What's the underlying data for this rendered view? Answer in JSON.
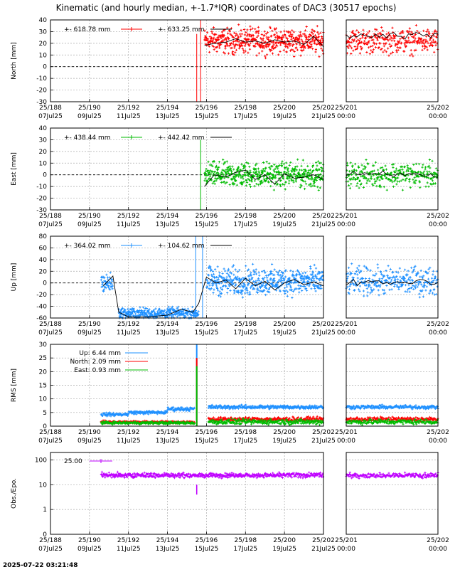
{
  "title": "Kinematic (and hourly median, +-1.7*IQR) coordinates of DAC3 (30517 epochs)",
  "timestamp": "2025-07-22 03:21:48",
  "colors": {
    "north": "#ff0000",
    "east": "#00bb00",
    "up": "#1e90ff",
    "obs": "#bf00ff",
    "median": "#000000"
  },
  "x_axis_main": {
    "range": [
      188,
      202
    ],
    "ticks": [
      {
        "v": 188,
        "doy": "25/188",
        "date": "07Jul25"
      },
      {
        "v": 190,
        "doy": "25/190",
        "date": "09Jul25"
      },
      {
        "v": 192,
        "doy": "25/192",
        "date": "11Jul25"
      },
      {
        "v": 194,
        "doy": "25/194",
        "date": "13Jul25"
      },
      {
        "v": 196,
        "doy": "25/196",
        "date": "15Jul25"
      },
      {
        "v": 198,
        "doy": "25/198",
        "date": "17Jul25"
      },
      {
        "v": 200,
        "doy": "25/200",
        "date": "19Jul25"
      },
      {
        "v": 202,
        "doy": "25/202",
        "date": "21Jul25"
      }
    ]
  },
  "x_axis_zoom": {
    "range": [
      201,
      202
    ],
    "ticks": [
      {
        "v": 201,
        "doy": "25/201",
        "date": "00:00"
      },
      {
        "v": 202,
        "doy": "25/202",
        "date": "00:00"
      }
    ]
  },
  "chart_data": [
    {
      "type": "scatter",
      "key": "north",
      "ylabel": "North [mm]",
      "ylim": [
        -30,
        40
      ],
      "yticks": [
        -30,
        -20,
        -10,
        0,
        10,
        20,
        30,
        40
      ],
      "grid": true,
      "legend": [
        {
          "label": "+-  618.78 mm",
          "style": "points"
        },
        {
          "label": "+- 633.25 mm",
          "style": "line"
        }
      ],
      "series": [
        {
          "name": "kinematic",
          "kind": "points",
          "x_start": 195.9,
          "x_end": 202,
          "mean": 22,
          "spread": 9
        },
        {
          "name": "hourly median",
          "kind": "line",
          "x": [
            195.9,
            196.4,
            197,
            197.5,
            198,
            198.5,
            199,
            199.5,
            200,
            200.5,
            201,
            201.5,
            202
          ],
          "values": [
            18,
            20,
            21,
            24,
            21,
            22,
            20,
            23,
            21,
            22,
            19,
            26,
            17
          ]
        }
      ],
      "spikes": [
        {
          "x": 195.5,
          "from": -30,
          "to": 28
        },
        {
          "x": 195.7,
          "from": -30,
          "to": 40
        }
      ]
    },
    {
      "type": "scatter",
      "key": "east",
      "ylabel": "East [mm]",
      "ylim": [
        -30,
        40
      ],
      "yticks": [
        -30,
        -20,
        -10,
        0,
        10,
        20,
        30,
        40
      ],
      "grid": true,
      "legend": [
        {
          "label": "+-  438.44 mm",
          "style": "points"
        },
        {
          "label": "+- 442.42 mm",
          "style": "line"
        }
      ],
      "series": [
        {
          "name": "kinematic",
          "kind": "points",
          "x_start": 195.9,
          "x_end": 202,
          "mean": 0,
          "spread": 9
        },
        {
          "name": "hourly median",
          "kind": "line",
          "x": [
            195.9,
            196.4,
            197,
            197.5,
            198,
            198.5,
            199,
            199.5,
            200,
            200.5,
            201,
            201.5,
            202
          ],
          "values": [
            -10,
            0,
            -2,
            2,
            4,
            -4,
            0,
            -8,
            1,
            -3,
            -2,
            0,
            -4
          ]
        }
      ],
      "spikes": [
        {
          "x": 195.7,
          "from": 30,
          "to": -30
        }
      ]
    },
    {
      "type": "scatter",
      "key": "up",
      "ylabel": "Up [mm]",
      "ylim": [
        -60,
        80
      ],
      "yticks": [
        -60,
        -40,
        -20,
        0,
        20,
        40,
        60,
        80
      ],
      "grid": true,
      "legend": [
        {
          "label": "+-  364.02 mm",
          "style": "points"
        },
        {
          "label": "+- 104.62 mm",
          "style": "line"
        }
      ],
      "series": [
        {
          "name": "kinematic",
          "kind": "points",
          "segments": [
            {
              "x_start": 190.6,
              "x_end": 191.2,
              "mean": 0,
              "spread": 14
            },
            {
              "x_start": 191.5,
              "x_end": 195.6,
              "mean": -52,
              "spread": 8
            },
            {
              "x_start": 196.0,
              "x_end": 202,
              "mean": 3,
              "spread": 20
            }
          ]
        },
        {
          "name": "hourly median",
          "kind": "line",
          "x": [
            190.7,
            191.0,
            191.2,
            191.5,
            192,
            193,
            194,
            194.7,
            195.3,
            195.6,
            196,
            196.5,
            197,
            197.5,
            198,
            198.5,
            199,
            199.5,
            200,
            200.5,
            201,
            201.5,
            202
          ],
          "values": [
            -5,
            5,
            12,
            -50,
            -58,
            -58,
            -55,
            -45,
            -50,
            -35,
            10,
            0,
            5,
            -10,
            8,
            -5,
            3,
            -12,
            0,
            6,
            -3,
            2,
            -5
          ]
        }
      ],
      "spikes": [
        {
          "x": 195.45,
          "from": -60,
          "to": 80
        },
        {
          "x": 195.8,
          "from": -60,
          "to": 80
        }
      ]
    },
    {
      "type": "scatter",
      "key": "rms",
      "ylabel": "RMS [mm]",
      "ylim": [
        0,
        30
      ],
      "yticks": [
        0,
        5,
        10,
        15,
        20,
        25,
        30
      ],
      "grid": true,
      "legend": [
        {
          "label": "Up:   6.44 mm",
          "color_key": "up"
        },
        {
          "label": "North:   2.09 mm",
          "color_key": "north"
        },
        {
          "label": "East:   0.93 mm",
          "color_key": "east"
        }
      ],
      "series": [
        {
          "name": "Up",
          "kind": "points",
          "segments": [
            {
              "x_start": 190.6,
              "x_end": 192.0,
              "mean": 4.3,
              "spread": 0.5
            },
            {
              "x_start": 192.0,
              "x_end": 194.0,
              "mean": 5.0,
              "spread": 0.5
            },
            {
              "x_start": 194.0,
              "x_end": 195.4,
              "mean": 6.3,
              "spread": 0.6
            },
            {
              "x_start": 196.1,
              "x_end": 202,
              "mean": 7.0,
              "spread": 0.6
            }
          ]
        },
        {
          "name": "North",
          "kind": "points",
          "segments": [
            {
              "x_start": 190.6,
              "x_end": 195.4,
              "mean": 1.5,
              "spread": 0.4
            },
            {
              "x_start": 196.1,
              "x_end": 202,
              "mean": 2.5,
              "spread": 0.7
            }
          ]
        },
        {
          "name": "East",
          "kind": "points",
          "segments": [
            {
              "x_start": 190.6,
              "x_end": 195.4,
              "mean": 1.2,
              "spread": 0.4
            },
            {
              "x_start": 196.1,
              "x_end": 202,
              "mean": 1.6,
              "spread": 0.8
            }
          ]
        }
      ],
      "peak": {
        "x": 195.5,
        "values": [
          30,
          25,
          22
        ]
      }
    },
    {
      "type": "scatter",
      "key": "obs",
      "ylabel": "Obs./Epo.",
      "yscale": "log",
      "ylim": [
        0.1,
        200
      ],
      "yticks": [
        {
          "v": 0.1,
          "label": "0"
        },
        {
          "v": 1,
          "label": "1"
        },
        {
          "v": 10,
          "label": "10"
        },
        {
          "v": 100,
          "label": "100"
        }
      ],
      "grid": true,
      "legend": [
        {
          "label": "25.00",
          "color_key": "obs"
        }
      ],
      "series": [
        {
          "name": "Obs./Epo.",
          "kind": "points",
          "x_start": 190.6,
          "x_end": 202,
          "mean": 24,
          "spread": 0.08
        }
      ],
      "dip": {
        "x": 195.5,
        "values": [
          10,
          4
        ]
      }
    }
  ]
}
